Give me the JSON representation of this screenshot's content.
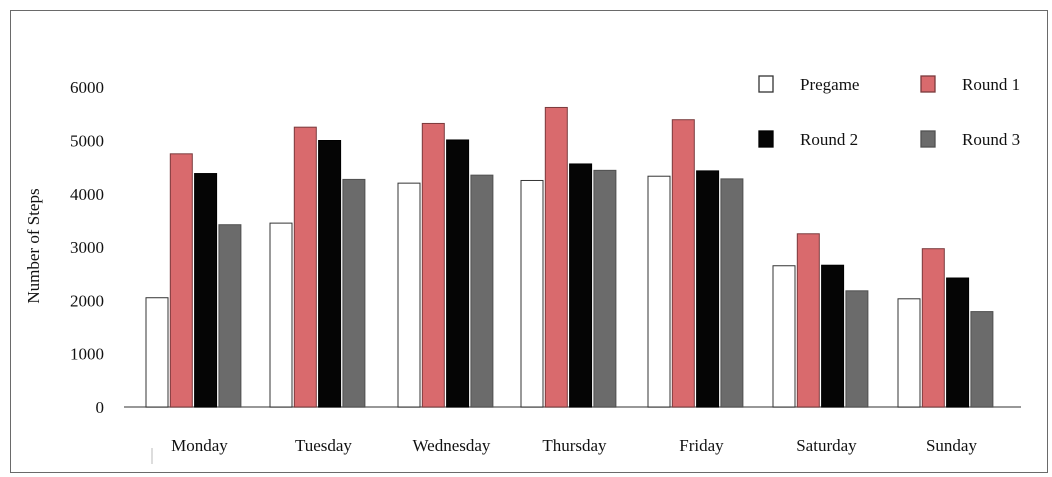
{
  "chart_data": {
    "type": "bar",
    "title": "",
    "xlabel": "",
    "ylabel": "Number of Steps",
    "ylim": [
      0,
      6000
    ],
    "yticks": [
      0,
      1000,
      2000,
      3000,
      4000,
      5000,
      6000
    ],
    "categories": [
      "Monday",
      "Tuesday",
      "Wednesday",
      "Thursday",
      "Friday",
      "Saturday",
      "Sunday"
    ],
    "series": [
      {
        "name": "Pregame",
        "color": "#ffffff",
        "stroke": "#333333",
        "values": [
          2050,
          3450,
          4200,
          4250,
          4330,
          2650,
          2030
        ]
      },
      {
        "name": "Round 1",
        "color": "#d96a6d",
        "stroke": "#7a3a3c",
        "values": [
          4750,
          5250,
          5320,
          5620,
          5390,
          3250,
          2970
        ]
      },
      {
        "name": "Round 2",
        "color": "#050505",
        "stroke": "#000000",
        "values": [
          4380,
          5000,
          5010,
          4560,
          4430,
          2660,
          2420
        ]
      },
      {
        "name": "Round 3",
        "color": "#6b6b6b",
        "stroke": "#505050",
        "values": [
          3420,
          4270,
          4350,
          4440,
          4280,
          2180,
          1790
        ]
      }
    ],
    "legend_position": "top-right",
    "grid": false
  }
}
